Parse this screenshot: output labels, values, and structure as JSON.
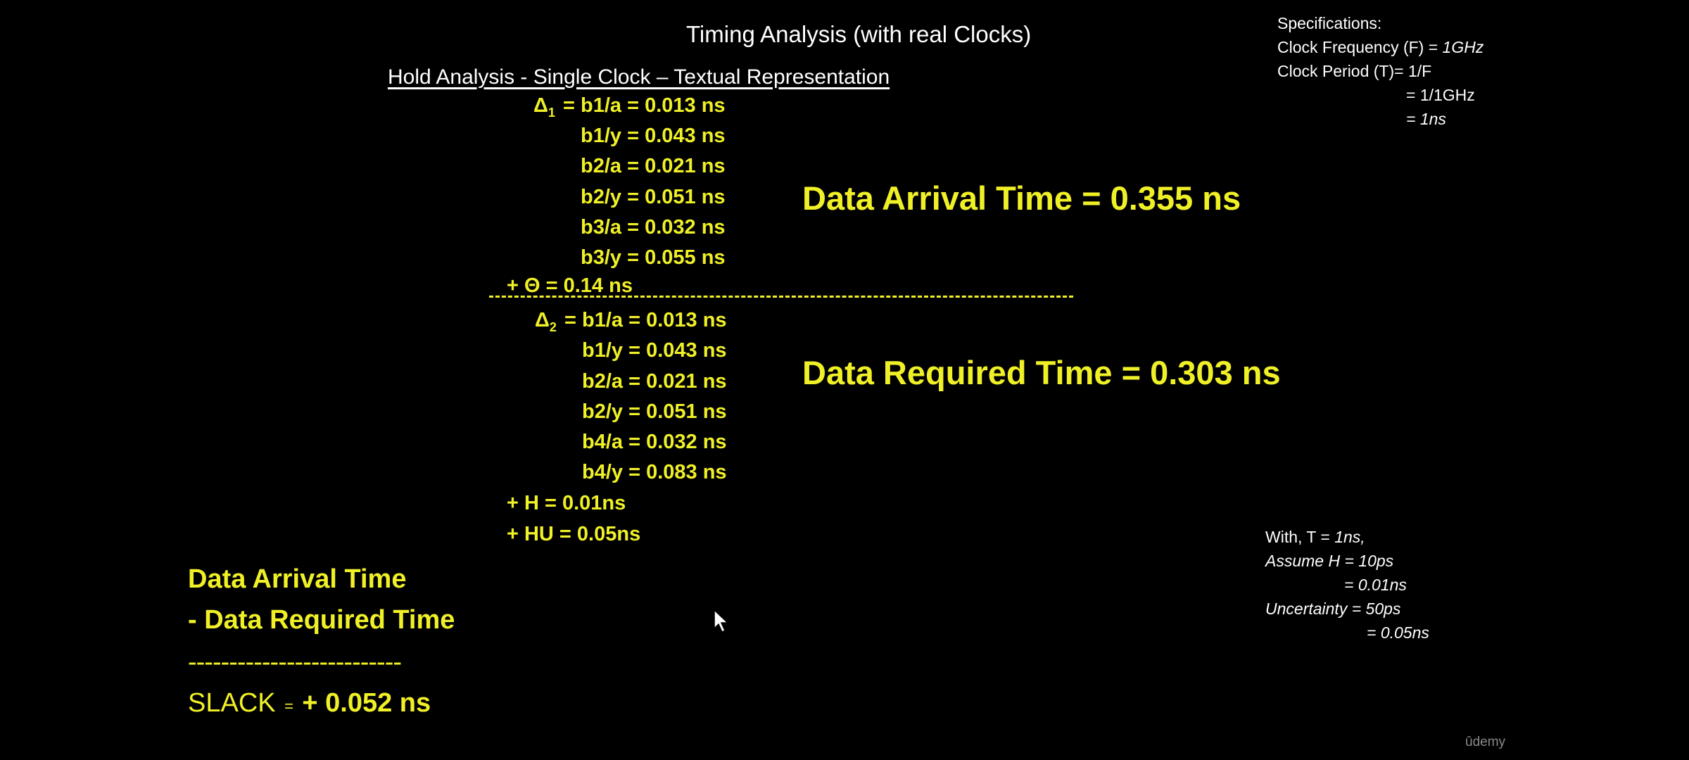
{
  "slide": {
    "title": "Timing Analysis (with real Clocks)",
    "subtitle": "Hold Analysis - Single Clock – Textual Representation"
  },
  "specs": {
    "heading": "Specifications:",
    "freq_label": "Clock Frequency (F) = ",
    "freq_value": "1GHz",
    "period_line1": "Clock Period (T)= 1/F",
    "period_line2": "= 1/1GHz",
    "period_line3": "= 1ns"
  },
  "launch_path": {
    "delta_symbol": "Δ",
    "delta_sub": "1",
    "rows": [
      "= b1/a = 0.013 ns",
      "b1/y = 0.043 ns",
      "b2/a = 0.021 ns",
      "b2/y = 0.051 ns",
      "b3/a = 0.032 ns",
      "b3/y = 0.055 ns"
    ],
    "theta_row": "+  Θ  = 0.14 ns"
  },
  "capture_path": {
    "delta_symbol": "Δ",
    "delta_sub": "2",
    "rows": [
      "= b1/a = 0.013 ns",
      "b1/y = 0.043 ns",
      "b2/a = 0.021 ns",
      "b2/y = 0.051 ns",
      "b4/a = 0.032 ns",
      "b4/y = 0.083 ns"
    ],
    "h_row": "+  H    = 0.01ns",
    "hu_row": "+  HU = 0.05ns"
  },
  "results": {
    "arrival": "Data Arrival Time = 0.355 ns",
    "required": "Data Required Time = 0.303 ns"
  },
  "summary": {
    "line1": "Data Arrival Time",
    "line2": "-   Data Required Time",
    "divider": "--------------------------",
    "slack_label": "SLACK",
    "slack_eq": "=",
    "slack_value": "+ 0.052 ns"
  },
  "notes": {
    "line1_prefix": "With, T = ",
    "line1_value": "1ns,",
    "line2": "Assume H = 10ps",
    "line3": "= 0.01ns",
    "line4": "Uncertainty = 50ps",
    "line5": "= 0.05ns"
  },
  "watermark": "ûdemy",
  "colors": {
    "background": "#000000",
    "highlight": "#f0f027",
    "text": "#ffffff"
  }
}
